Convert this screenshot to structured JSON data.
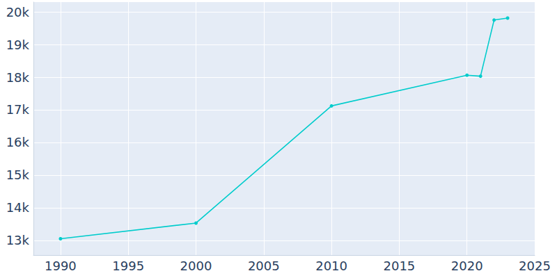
{
  "chart_data": {
    "type": "line",
    "x": [
      1990,
      2000,
      2010,
      2020,
      2021,
      2022,
      2023
    ],
    "values": [
      13050,
      13530,
      17120,
      18060,
      18030,
      19750,
      19810
    ],
    "color": "#00cccc",
    "marker": "circle",
    "xlim": [
      1988,
      2025
    ],
    "xticks": [
      1990,
      1995,
      2000,
      2005,
      2010,
      2015,
      2020,
      2025
    ],
    "ylim": [
      12550,
      20300
    ],
    "yticks": [
      {
        "value": 13000,
        "label": "13k"
      },
      {
        "value": 14000,
        "label": "14k"
      },
      {
        "value": 15000,
        "label": "15k"
      },
      {
        "value": 16000,
        "label": "16k"
      },
      {
        "value": 17000,
        "label": "17k"
      },
      {
        "value": 18000,
        "label": "18k"
      },
      {
        "value": 19000,
        "label": "19k"
      },
      {
        "value": 20000,
        "label": "20k"
      }
    ],
    "grid": true
  }
}
